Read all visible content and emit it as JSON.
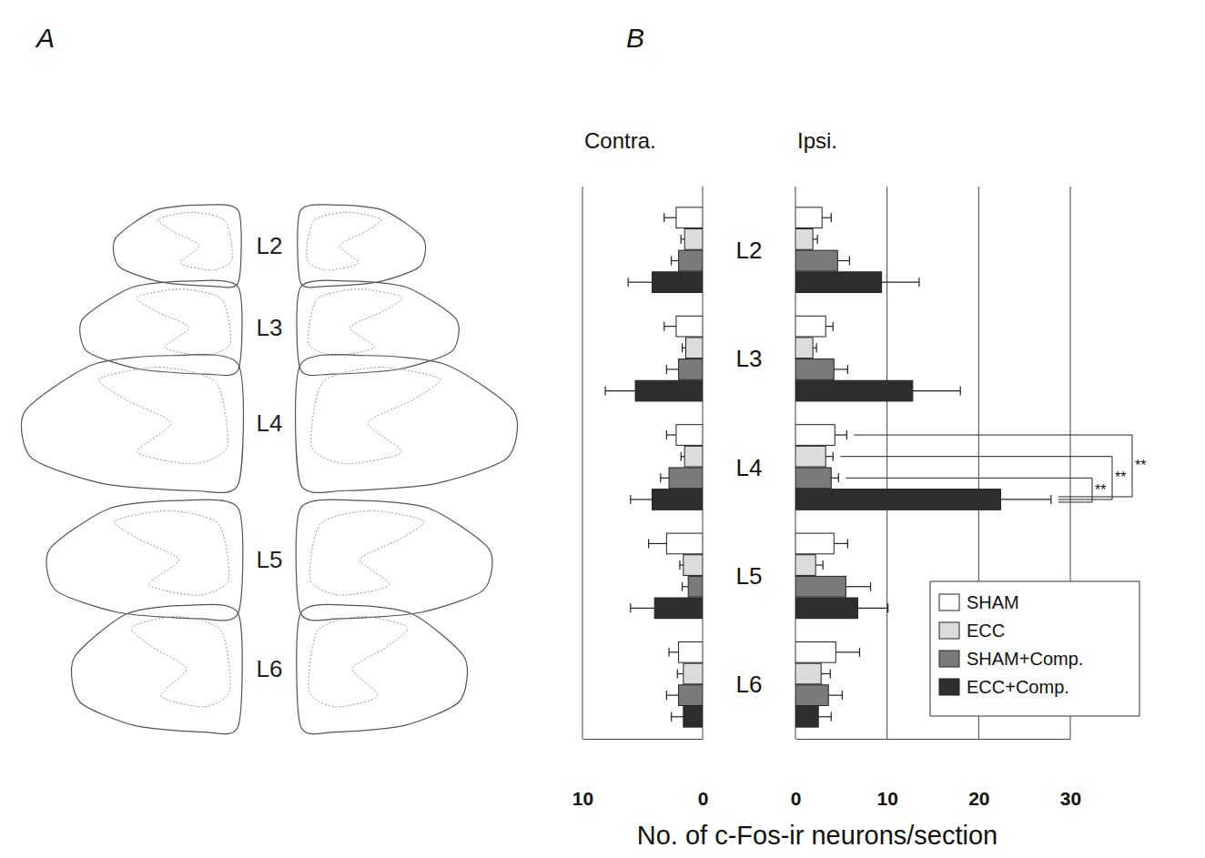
{
  "figure": {
    "panel_labels": [
      "A",
      "B"
    ]
  },
  "chart_data": [
    {
      "type": "bar",
      "orientation": "horizontal",
      "title": "Contra.",
      "categories": [
        "L2",
        "L3",
        "L4",
        "L5",
        "L6"
      ],
      "xlim": [
        10,
        0
      ],
      "xticks": [
        10,
        0
      ],
      "grid": true,
      "series": [
        {
          "color": "#ffffff",
          "values": [
            2.2,
            2.2,
            2.2,
            3.0,
            2.0
          ],
          "errors": [
            1.0,
            1.0,
            0.8,
            1.5,
            0.8
          ]
        },
        {
          "color": "#dcdcdc",
          "values": [
            1.5,
            1.4,
            1.5,
            1.6,
            1.6
          ],
          "errors": [
            0.3,
            0.3,
            0.3,
            0.3,
            0.5
          ]
        },
        {
          "color": "#7a7a7a",
          "values": [
            2.0,
            2.0,
            2.8,
            1.2,
            2.0
          ],
          "errors": [
            0.6,
            1.0,
            0.7,
            0.5,
            1.0
          ]
        },
        {
          "color": "#2e2e2e",
          "values": [
            4.2,
            5.6,
            4.2,
            4.0,
            1.6
          ],
          "errors": [
            2.0,
            2.5,
            1.8,
            2.0,
            1.0
          ]
        }
      ]
    },
    {
      "type": "bar",
      "orientation": "horizontal",
      "title": "Ipsi.",
      "categories": [
        "L2",
        "L3",
        "L4",
        "L5",
        "L6"
      ],
      "xlim": [
        0,
        30
      ],
      "xticks": [
        0,
        10,
        20,
        30
      ],
      "grid": true,
      "xlabel": "No. of c-Fos-ir neurons/section",
      "legend": "lower right",
      "series": [
        {
          "name": "SHAM",
          "color": "#ffffff",
          "values": [
            2.9,
            3.3,
            4.3,
            4.2,
            4.4
          ],
          "errors": [
            1.0,
            0.8,
            1.3,
            1.5,
            2.6
          ]
        },
        {
          "name": "ECC",
          "color": "#dcdcdc",
          "values": [
            1.9,
            1.9,
            3.3,
            2.2,
            2.8
          ],
          "errors": [
            0.5,
            0.4,
            0.8,
            0.8,
            1.0
          ]
        },
        {
          "name": "SHAM+Comp.",
          "color": "#7a7a7a",
          "values": [
            4.6,
            4.2,
            3.9,
            5.5,
            3.6
          ],
          "errors": [
            1.3,
            1.5,
            0.8,
            2.7,
            1.5
          ]
        },
        {
          "name": "ECC+Comp.",
          "color": "#2e2e2e",
          "values": [
            9.4,
            12.8,
            22.4,
            6.8,
            2.5
          ],
          "errors": [
            4.1,
            5.2,
            5.5,
            3.3,
            1.4
          ]
        }
      ],
      "annotations": [
        {
          "category": "L4",
          "series": [
            "SHAM",
            "ECC+Comp."
          ],
          "text": "**"
        },
        {
          "category": "L4",
          "series": [
            "ECC",
            "ECC+Comp."
          ],
          "text": "**"
        },
        {
          "category": "L4",
          "series": [
            "SHAM+Comp.",
            "ECC+Comp."
          ],
          "text": "**"
        }
      ]
    }
  ]
}
